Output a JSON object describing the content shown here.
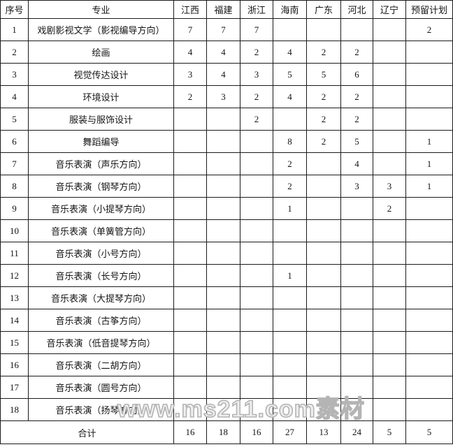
{
  "table": {
    "columns": [
      "序号",
      "专业",
      "江西",
      "福建",
      "浙江",
      "海南",
      "广东",
      "河北",
      "辽宁",
      "预留计划"
    ],
    "rows": [
      {
        "no": "1",
        "major": "戏剧影视文学（影视编导方向）",
        "values": [
          "7",
          "7",
          "7",
          "",
          "",
          "",
          "",
          "2"
        ]
      },
      {
        "no": "2",
        "major": "绘画",
        "values": [
          "4",
          "4",
          "2",
          "4",
          "2",
          "2",
          "",
          ""
        ]
      },
      {
        "no": "3",
        "major": "视觉传达设计",
        "values": [
          "3",
          "4",
          "3",
          "5",
          "5",
          "6",
          "",
          ""
        ]
      },
      {
        "no": "4",
        "major": "环境设计",
        "values": [
          "2",
          "3",
          "2",
          "4",
          "2",
          "2",
          "",
          ""
        ]
      },
      {
        "no": "5",
        "major": "服装与服饰设计",
        "values": [
          "",
          "",
          "2",
          "",
          "2",
          "2",
          "",
          ""
        ]
      },
      {
        "no": "6",
        "major": "舞蹈编导",
        "values": [
          "",
          "",
          "",
          "8",
          "2",
          "5",
          "",
          "1"
        ]
      },
      {
        "no": "7",
        "major": "音乐表演（声乐方向）",
        "values": [
          "",
          "",
          "",
          "2",
          "",
          "4",
          "",
          "1"
        ]
      },
      {
        "no": "8",
        "major": "音乐表演（钢琴方向）",
        "values": [
          "",
          "",
          "",
          "2",
          "",
          "3",
          "3",
          "1"
        ]
      },
      {
        "no": "9",
        "major": "音乐表演（小提琴方向）",
        "values": [
          "",
          "",
          "",
          "1",
          "",
          "",
          "2",
          ""
        ]
      },
      {
        "no": "10",
        "major": "音乐表演（单簧管方向）",
        "values": [
          "",
          "",
          "",
          "",
          "",
          "",
          "",
          ""
        ]
      },
      {
        "no": "11",
        "major": "音乐表演（小号方向）",
        "values": [
          "",
          "",
          "",
          "",
          "",
          "",
          "",
          ""
        ]
      },
      {
        "no": "12",
        "major": "音乐表演（长号方向）",
        "values": [
          "",
          "",
          "",
          "1",
          "",
          "",
          "",
          ""
        ]
      },
      {
        "no": "13",
        "major": "音乐表演（大提琴方向）",
        "values": [
          "",
          "",
          "",
          "",
          "",
          "",
          "",
          ""
        ]
      },
      {
        "no": "14",
        "major": "音乐表演（古筝方向）",
        "values": [
          "",
          "",
          "",
          "",
          "",
          "",
          "",
          ""
        ]
      },
      {
        "no": "15",
        "major": "音乐表演（低音提琴方向）",
        "values": [
          "",
          "",
          "",
          "",
          "",
          "",
          "",
          ""
        ]
      },
      {
        "no": "16",
        "major": "音乐表演（二胡方向）",
        "values": [
          "",
          "",
          "",
          "",
          "",
          "",
          "",
          ""
        ]
      },
      {
        "no": "17",
        "major": "音乐表演（圆号方向）",
        "values": [
          "",
          "",
          "",
          "",
          "",
          "",
          "",
          ""
        ]
      },
      {
        "no": "18",
        "major": "音乐表演（扬琴方向）",
        "values": [
          "",
          "",
          "",
          "",
          "",
          "",
          "",
          ""
        ]
      }
    ],
    "total": {
      "label": "合计",
      "values": [
        "16",
        "18",
        "16",
        "27",
        "13",
        "24",
        "5",
        "5"
      ]
    }
  },
  "watermark": {
    "text": "www.ms211.com素材"
  },
  "colors": {
    "border": "#1b1b1b",
    "text": "#151515",
    "background": "#ffffff",
    "watermark_fill": "#efefef",
    "watermark_stroke": "#b4b4b4"
  }
}
